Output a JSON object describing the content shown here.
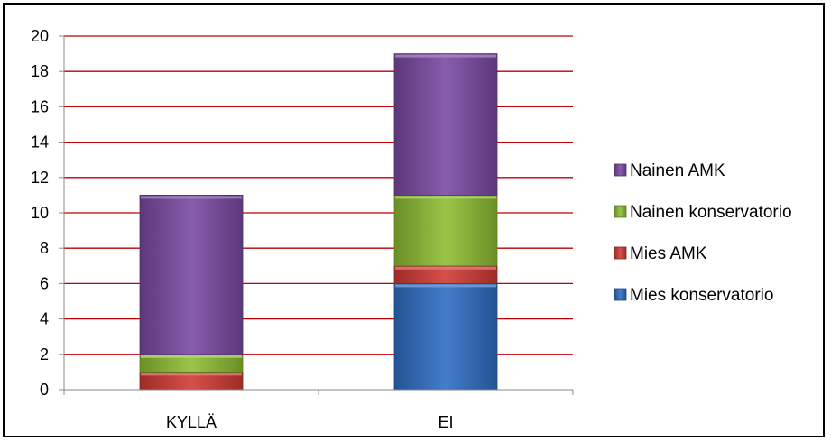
{
  "chart_data": {
    "type": "bar",
    "stacked": true,
    "categories": [
      "KYLLÄ",
      "EI"
    ],
    "series": [
      {
        "name": "Mies konservatorio",
        "color": "#2f6fc4",
        "values": [
          0,
          6
        ]
      },
      {
        "name": "Mies AMK",
        "color": "#d13b35",
        "values": [
          1,
          1
        ]
      },
      {
        "name": "Nainen konservatorio",
        "color": "#8fbf34",
        "values": [
          1,
          4
        ]
      },
      {
        "name": "Nainen AMK",
        "color": "#7a4ba3",
        "values": [
          9,
          8
        ]
      }
    ],
    "ylim": [
      0,
      20
    ],
    "yticks": [
      "0",
      "2",
      "4",
      "6",
      "8",
      "10",
      "12",
      "14",
      "16",
      "18",
      "20"
    ],
    "grid": true,
    "grid_color": "#c00000",
    "legend_position": "right",
    "legend_order": [
      "Nainen AMK",
      "Nainen konservatorio",
      "Mies AMK",
      "Mies konservatorio"
    ]
  }
}
